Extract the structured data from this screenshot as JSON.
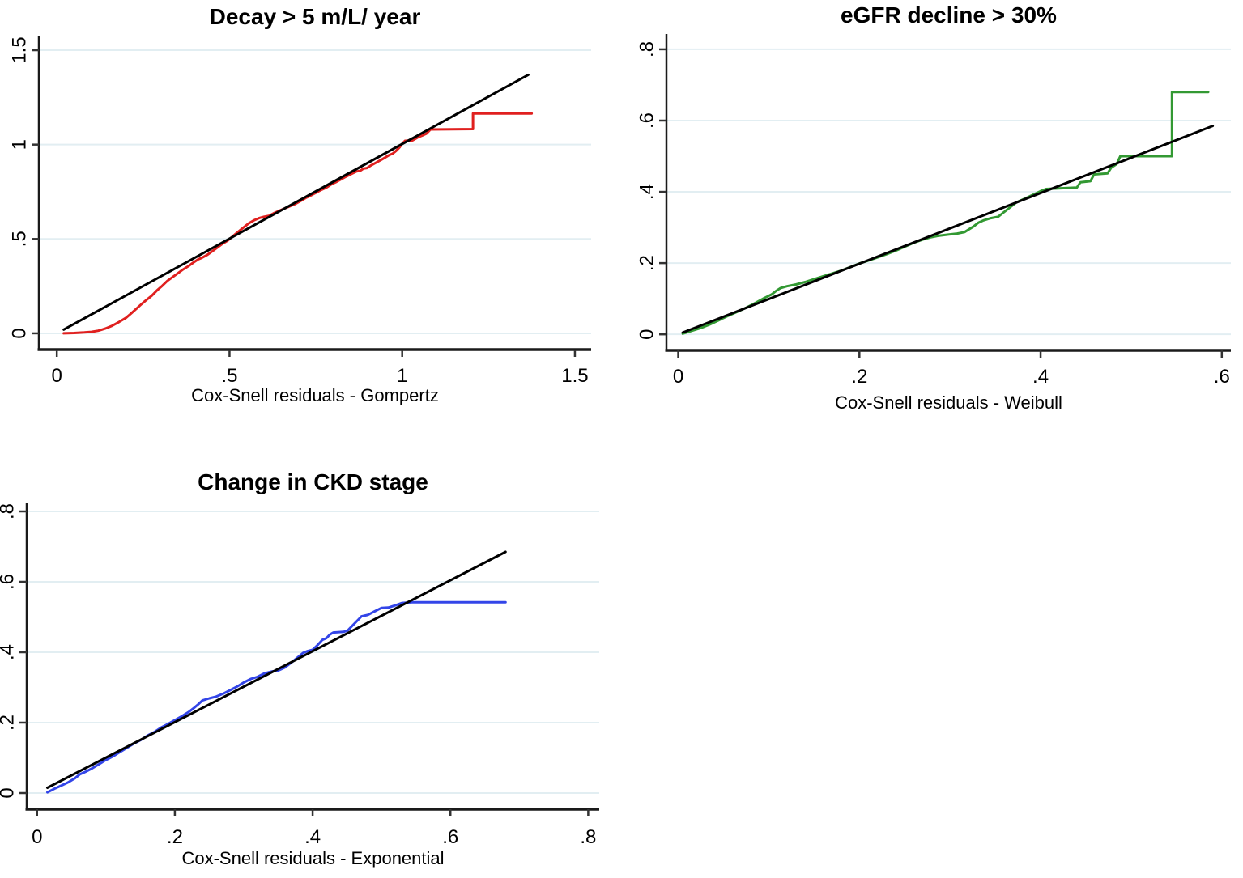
{
  "figure": {
    "description": "Three Cox-Snell residual goodness-of-fit panels (Stata style), each with an empirical cumulative hazard step curve and a 45-degree reference line",
    "background": "#ffffff"
  },
  "palette": {
    "grid_color": "#e2eef2",
    "axis_color": "#1a1a1a",
    "tick_color": "#333333",
    "text_color": "#000000",
    "red": "#e0201f",
    "green": "#339933",
    "blue": "#3345e8",
    "reference_black": "#000000"
  },
  "chart_data": [
    {
      "type": "line",
      "panel": "decay",
      "title": "Decay > 5 m/L/ year",
      "xlabel": "Cox-Snell residuals - Gompertz",
      "ylabel": "",
      "xlim": [
        -0.052,
        1.547
      ],
      "ylim": [
        -0.086,
        1.573
      ],
      "xticks": [
        0,
        0.5,
        1,
        1.5
      ],
      "xtick_labels": [
        "0",
        ".5",
        "1",
        "1.5"
      ],
      "yticks": [
        0,
        0.5,
        1,
        1.5
      ],
      "ytick_labels": [
        "0",
        ".5",
        "1",
        "1.5"
      ],
      "grid": "horizontal",
      "legend": "none",
      "series": [
        {
          "name": "Cox-Snell residuals - Gompertz (empirical)",
          "color": "#e0201f",
          "points": [
            [
              0.02,
              0
            ],
            [
              0.05,
              0.002
            ],
            [
              0.08,
              0.005
            ],
            [
              0.1,
              0.008
            ],
            [
              0.12,
              0.014
            ],
            [
              0.14,
              0.025
            ],
            [
              0.16,
              0.04
            ],
            [
              0.18,
              0.06
            ],
            [
              0.2,
              0.082
            ],
            [
              0.215,
              0.105
            ],
            [
              0.23,
              0.13
            ],
            [
              0.245,
              0.155
            ],
            [
              0.26,
              0.178
            ],
            [
              0.275,
              0.2
            ],
            [
              0.29,
              0.228
            ],
            [
              0.305,
              0.252
            ],
            [
              0.32,
              0.278
            ],
            [
              0.335,
              0.298
            ],
            [
              0.35,
              0.318
            ],
            [
              0.365,
              0.338
            ],
            [
              0.38,
              0.355
            ],
            [
              0.395,
              0.375
            ],
            [
              0.41,
              0.393
            ],
            [
              0.42,
              0.4
            ],
            [
              0.435,
              0.415
            ],
            [
              0.45,
              0.435
            ],
            [
              0.465,
              0.455
            ],
            [
              0.48,
              0.475
            ],
            [
              0.495,
              0.492
            ],
            [
              0.51,
              0.515
            ],
            [
              0.525,
              0.538
            ],
            [
              0.54,
              0.56
            ],
            [
              0.555,
              0.582
            ],
            [
              0.57,
              0.598
            ],
            [
              0.585,
              0.61
            ],
            [
              0.6,
              0.618
            ],
            [
              0.615,
              0.623
            ],
            [
              0.63,
              0.638
            ],
            [
              0.645,
              0.65
            ],
            [
              0.66,
              0.662
            ],
            [
              0.675,
              0.673
            ],
            [
              0.69,
              0.685
            ],
            [
              0.705,
              0.7
            ],
            [
              0.72,
              0.717
            ],
            [
              0.735,
              0.73
            ],
            [
              0.75,
              0.745
            ],
            [
              0.765,
              0.76
            ],
            [
              0.78,
              0.772
            ],
            [
              0.795,
              0.79
            ],
            [
              0.81,
              0.803
            ],
            [
              0.825,
              0.818
            ],
            [
              0.84,
              0.833
            ],
            [
              0.855,
              0.847
            ],
            [
              0.868,
              0.858
            ],
            [
              0.878,
              0.861
            ],
            [
              0.888,
              0.873
            ],
            [
              0.898,
              0.876
            ],
            [
              0.91,
              0.89
            ],
            [
              0.925,
              0.905
            ],
            [
              0.94,
              0.92
            ],
            [
              0.952,
              0.933
            ],
            [
              0.962,
              0.944
            ],
            [
              0.972,
              0.952
            ],
            [
              0.982,
              0.966
            ],
            [
              0.992,
              0.985
            ],
            [
              1.0,
              1.005
            ],
            [
              1.008,
              1.02
            ],
            [
              1.03,
              1.022
            ],
            [
              1.045,
              1.038
            ],
            [
              1.058,
              1.048
            ],
            [
              1.07,
              1.058
            ],
            [
              1.082,
              1.08
            ],
            [
              1.205,
              1.082
            ],
            [
              1.205,
              1.165
            ],
            [
              1.375,
              1.165
            ]
          ]
        },
        {
          "name": "45-degree reference line",
          "color": "#000000",
          "points": [
            [
              0.02,
              0.02
            ],
            [
              1.365,
              1.37
            ]
          ]
        }
      ]
    },
    {
      "type": "line",
      "panel": "egfr",
      "title": "eGFR decline > 30%",
      "xlabel": "Cox-Snell residuals - Weibull",
      "ylabel": "",
      "xlim": [
        -0.013,
        0.61
      ],
      "ylim": [
        -0.045,
        0.843
      ],
      "xticks": [
        0,
        0.2,
        0.4,
        0.6
      ],
      "xtick_labels": [
        "0",
        ".2",
        ".4",
        ".6"
      ],
      "yticks": [
        0,
        0.2,
        0.4,
        0.6,
        0.8
      ],
      "ytick_labels": [
        "0",
        ".2",
        ".4",
        ".6",
        ".8"
      ],
      "grid": "horizontal",
      "legend": "none",
      "series": [
        {
          "name": "Cox-Snell residuals - Weibull (empirical)",
          "color": "#339933",
          "points": [
            [
              0.005,
              0.002
            ],
            [
              0.015,
              0.01
            ],
            [
              0.025,
              0.018
            ],
            [
              0.035,
              0.028
            ],
            [
              0.045,
              0.04
            ],
            [
              0.055,
              0.052
            ],
            [
              0.065,
              0.063
            ],
            [
              0.075,
              0.075
            ],
            [
              0.085,
              0.088
            ],
            [
              0.095,
              0.102
            ],
            [
              0.103,
              0.112
            ],
            [
              0.108,
              0.122
            ],
            [
              0.113,
              0.13
            ],
            [
              0.12,
              0.135
            ],
            [
              0.13,
              0.14
            ],
            [
              0.14,
              0.147
            ],
            [
              0.15,
              0.155
            ],
            [
              0.16,
              0.163
            ],
            [
              0.17,
              0.171
            ],
            [
              0.18,
              0.179
            ],
            [
              0.19,
              0.189
            ],
            [
              0.2,
              0.199
            ],
            [
              0.21,
              0.207
            ],
            [
              0.22,
              0.216
            ],
            [
              0.23,
              0.225
            ],
            [
              0.24,
              0.235
            ],
            [
              0.25,
              0.246
            ],
            [
              0.26,
              0.257
            ],
            [
              0.27,
              0.266
            ],
            [
              0.278,
              0.272
            ],
            [
              0.288,
              0.277
            ],
            [
              0.298,
              0.28
            ],
            [
              0.308,
              0.283
            ],
            [
              0.316,
              0.287
            ],
            [
              0.321,
              0.295
            ],
            [
              0.326,
              0.303
            ],
            [
              0.331,
              0.313
            ],
            [
              0.337,
              0.32
            ],
            [
              0.345,
              0.326
            ],
            [
              0.353,
              0.33
            ],
            [
              0.358,
              0.34
            ],
            [
              0.363,
              0.35
            ],
            [
              0.368,
              0.36
            ],
            [
              0.373,
              0.37
            ],
            [
              0.38,
              0.378
            ],
            [
              0.39,
              0.39
            ],
            [
              0.4,
              0.402
            ],
            [
              0.406,
              0.408
            ],
            [
              0.42,
              0.41
            ],
            [
              0.44,
              0.412
            ],
            [
              0.444,
              0.427
            ],
            [
              0.455,
              0.43
            ],
            [
              0.459,
              0.449
            ],
            [
              0.474,
              0.452
            ],
            [
              0.478,
              0.468
            ],
            [
              0.484,
              0.478
            ],
            [
              0.488,
              0.5
            ],
            [
              0.545,
              0.5
            ],
            [
              0.545,
              0.68
            ],
            [
              0.585,
              0.68
            ]
          ]
        },
        {
          "name": "45-degree reference line",
          "color": "#000000",
          "points": [
            [
              0.005,
              0.005
            ],
            [
              0.59,
              0.585
            ]
          ]
        }
      ]
    },
    {
      "type": "line",
      "panel": "ckd",
      "title": "Change in CKD stage",
      "xlabel": "Cox-Snell residuals - Exponential",
      "ylabel": "",
      "xlim": [
        -0.015,
        0.816
      ],
      "ylim": [
        -0.046,
        0.823
      ],
      "xticks": [
        0,
        0.2,
        0.4,
        0.6,
        0.8
      ],
      "xtick_labels": [
        "0",
        ".2",
        ".4",
        ".6",
        ".8"
      ],
      "yticks": [
        0,
        0.2,
        0.4,
        0.6,
        0.8
      ],
      "ytick_labels": [
        "0",
        ".2",
        ".4",
        ".6",
        ".8"
      ],
      "grid": "horizontal",
      "legend": "none",
      "series": [
        {
          "name": "Cox-Snell residuals - Exponential (empirical)",
          "color": "#3345e8",
          "points": [
            [
              0.015,
              0.002
            ],
            [
              0.025,
              0.012
            ],
            [
              0.035,
              0.021
            ],
            [
              0.045,
              0.03
            ],
            [
              0.055,
              0.042
            ],
            [
              0.062,
              0.053
            ],
            [
              0.07,
              0.06
            ],
            [
              0.08,
              0.07
            ],
            [
              0.09,
              0.082
            ],
            [
              0.1,
              0.094
            ],
            [
              0.11,
              0.104
            ],
            [
              0.12,
              0.116
            ],
            [
              0.13,
              0.128
            ],
            [
              0.14,
              0.14
            ],
            [
              0.15,
              0.15
            ],
            [
              0.16,
              0.163
            ],
            [
              0.17,
              0.173
            ],
            [
              0.18,
              0.186
            ],
            [
              0.19,
              0.196
            ],
            [
              0.2,
              0.207
            ],
            [
              0.21,
              0.218
            ],
            [
              0.22,
              0.23
            ],
            [
              0.228,
              0.242
            ],
            [
              0.234,
              0.252
            ],
            [
              0.24,
              0.263
            ],
            [
              0.25,
              0.269
            ],
            [
              0.26,
              0.274
            ],
            [
              0.27,
              0.282
            ],
            [
              0.28,
              0.292
            ],
            [
              0.29,
              0.302
            ],
            [
              0.3,
              0.314
            ],
            [
              0.31,
              0.324
            ],
            [
              0.32,
              0.33
            ],
            [
              0.33,
              0.34
            ],
            [
              0.34,
              0.345
            ],
            [
              0.35,
              0.348
            ],
            [
              0.36,
              0.357
            ],
            [
              0.37,
              0.372
            ],
            [
              0.38,
              0.388
            ],
            [
              0.386,
              0.398
            ],
            [
              0.392,
              0.403
            ],
            [
              0.4,
              0.407
            ],
            [
              0.408,
              0.422
            ],
            [
              0.414,
              0.435
            ],
            [
              0.42,
              0.44
            ],
            [
              0.425,
              0.45
            ],
            [
              0.43,
              0.456
            ],
            [
              0.445,
              0.458
            ],
            [
              0.451,
              0.462
            ],
            [
              0.456,
              0.472
            ],
            [
              0.461,
              0.482
            ],
            [
              0.466,
              0.492
            ],
            [
              0.471,
              0.502
            ],
            [
              0.48,
              0.506
            ],
            [
              0.49,
              0.516
            ],
            [
              0.5,
              0.526
            ],
            [
              0.51,
              0.527
            ],
            [
              0.52,
              0.533
            ],
            [
              0.53,
              0.54
            ],
            [
              0.545,
              0.542
            ],
            [
              0.68,
              0.542
            ]
          ]
        },
        {
          "name": "45-degree reference line",
          "color": "#000000",
          "points": [
            [
              0.015,
              0.015
            ],
            [
              0.68,
              0.685
            ]
          ]
        }
      ]
    }
  ]
}
